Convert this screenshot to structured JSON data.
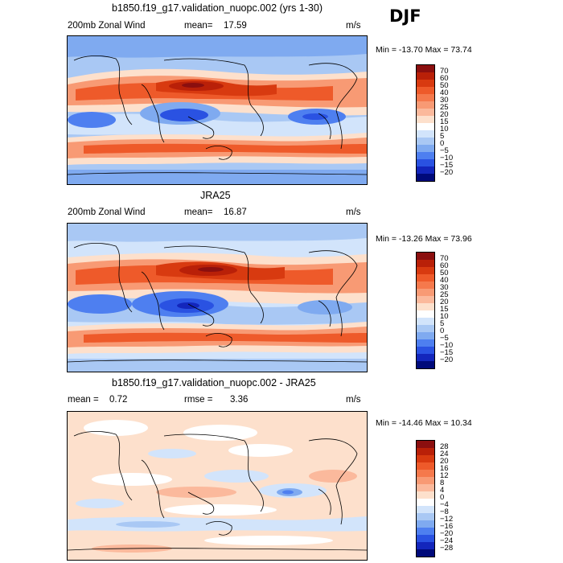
{
  "season": "DJF",
  "panels": [
    {
      "title": "b1850.f19_g17.validation_nuopc.002 (yrs 1-30)",
      "field_label": "200mb Zonal Wind",
      "stat1_label": "mean=",
      "stat1_value": "17.59",
      "stat2_label": "",
      "stat2_value": "",
      "units": "m/s",
      "minmax": "Min = -13.70 Max =  73.74",
      "colorbar_ticks": [
        "70",
        "60",
        "50",
        "40",
        "30",
        "25",
        "20",
        "15",
        "10",
        "5",
        "0",
        "−5",
        "−10",
        "−15",
        "−20"
      ]
    },
    {
      "title": "JRA25",
      "field_label": "200mb Zonal Wind",
      "stat1_label": "mean=",
      "stat1_value": "16.87",
      "stat2_label": "",
      "stat2_value": "",
      "units": "m/s",
      "minmax": "Min = -13.26 Max =  73.96",
      "colorbar_ticks": [
        "70",
        "60",
        "50",
        "40",
        "30",
        "25",
        "20",
        "15",
        "10",
        "5",
        "0",
        "−5",
        "−10",
        "−15",
        "−20"
      ]
    },
    {
      "title": "b1850.f19_g17.validation_nuopc.002 - JRA25",
      "field_label": "",
      "stat1_label": "mean =",
      "stat1_value": "0.72",
      "stat2_label": "rmse =",
      "stat2_value": "3.36",
      "units": "m/s",
      "minmax": "Min = -14.46 Max =  10.34",
      "colorbar_ticks": [
        "28",
        "24",
        "20",
        "16",
        "12",
        "8",
        "4",
        "0",
        "−4",
        "−8",
        "−12",
        "−16",
        "−20",
        "−24",
        "−28"
      ]
    }
  ],
  "colors": {
    "wind_scale": [
      "#8b0f0f",
      "#b92008",
      "#d83a10",
      "#ee5a2a",
      "#f5794c",
      "#f89a74",
      "#fbb99c",
      "#fde0cc",
      "#ffffff",
      "#d2e4fb",
      "#a9c8f4",
      "#7faaf0",
      "#4e7ff0",
      "#2a52e2",
      "#1326bc",
      "#000a7a"
    ],
    "diff_scale": [
      "#8b0f0f",
      "#b92008",
      "#d83a10",
      "#ee5a2a",
      "#f5794c",
      "#f89a74",
      "#fbb99c",
      "#fde0cc",
      "#ffffff",
      "#d2e4fb",
      "#a9c8f4",
      "#7faaf0",
      "#4e7ff0",
      "#2a52e2",
      "#1326bc",
      "#000a7a"
    ],
    "coastline": "#000000"
  }
}
